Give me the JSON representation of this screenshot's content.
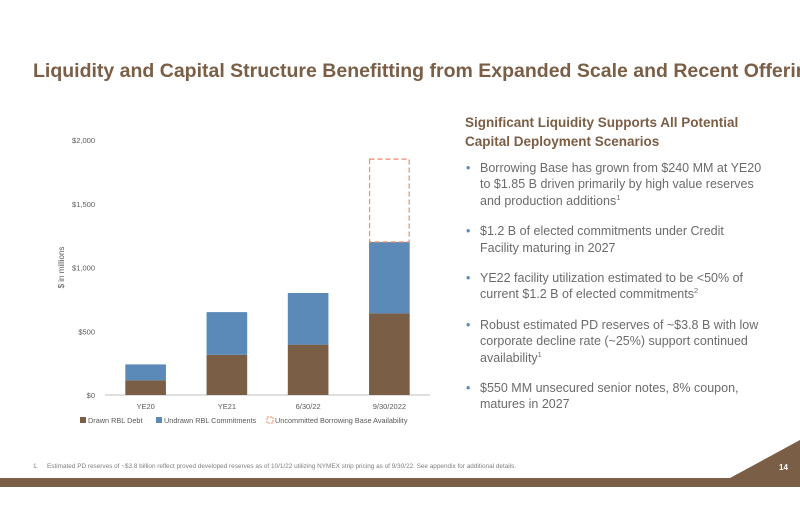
{
  "title": "Liquidity and Capital Structure Benefitting from Expanded Scale and Recent Offering",
  "section_heading_line1": "Significant Liquidity Supports All Potential",
  "section_heading_line2": "Capital Deployment Scenarios",
  "bullets": [
    {
      "text": "Borrowing Base has grown from $240 MM at YE20 to $1.85 B driven primarily by high value reserves and production additions",
      "sup": "1"
    },
    {
      "text": "$1.2 B of elected commitments under Credit Facility maturing in 2027",
      "sup": ""
    },
    {
      "text": "YE22 facility utilization estimated to be <50% of current $1.2 B of elected commitments",
      "sup": "2"
    },
    {
      "text": "Robust estimated PD reserves of ~$3.8 B with low corporate decline rate (~25%) support continued availability",
      "sup": "1"
    },
    {
      "text": "$550 MM unsecured senior notes, 8% coupon, matures in 2027",
      "sup": ""
    }
  ],
  "footnote_number": "1.",
  "footnote_text": "Estimated PD reserves of ~$3.8 billion reflect proved developed reserves as of 10/1/22 utilizing NYMEX strip pricing as of 9/30/22. See appendix for additional details.",
  "page_number": "14",
  "colors": {
    "title": "#7a5e45",
    "drawn": "#7a5e45",
    "undrawn": "#5b8ab8",
    "uncommitted": "#f08a6a",
    "footer_band": "#7a5e45"
  },
  "chart_data": {
    "type": "bar",
    "stacked": true,
    "categories": [
      "YE20",
      "YE21",
      "6/30/22",
      "9/30/2022"
    ],
    "series": [
      {
        "name": "Drawn RBL Debt",
        "values": [
          115,
          315,
          395,
          640
        ],
        "style": "solid",
        "color": "#7a5e45"
      },
      {
        "name": "Undrawn RBL Commitments",
        "values": [
          125,
          335,
          405,
          560
        ],
        "style": "solid",
        "color": "#5b8ab8"
      },
      {
        "name": "Uncommitted Borrowing Base Availability",
        "values": [
          0,
          0,
          0,
          650
        ],
        "style": "dashed-outline",
        "color": "#f08a6a"
      }
    ],
    "ylabel": "$ in millions",
    "ylim": [
      0,
      2000
    ],
    "yticks": [
      0,
      500,
      1000,
      1500,
      2000
    ],
    "ytick_labels": [
      "$0",
      "$500",
      "$1,000",
      "$1,500",
      "$2,000"
    ],
    "grid": false,
    "legend_position": "bottom"
  }
}
